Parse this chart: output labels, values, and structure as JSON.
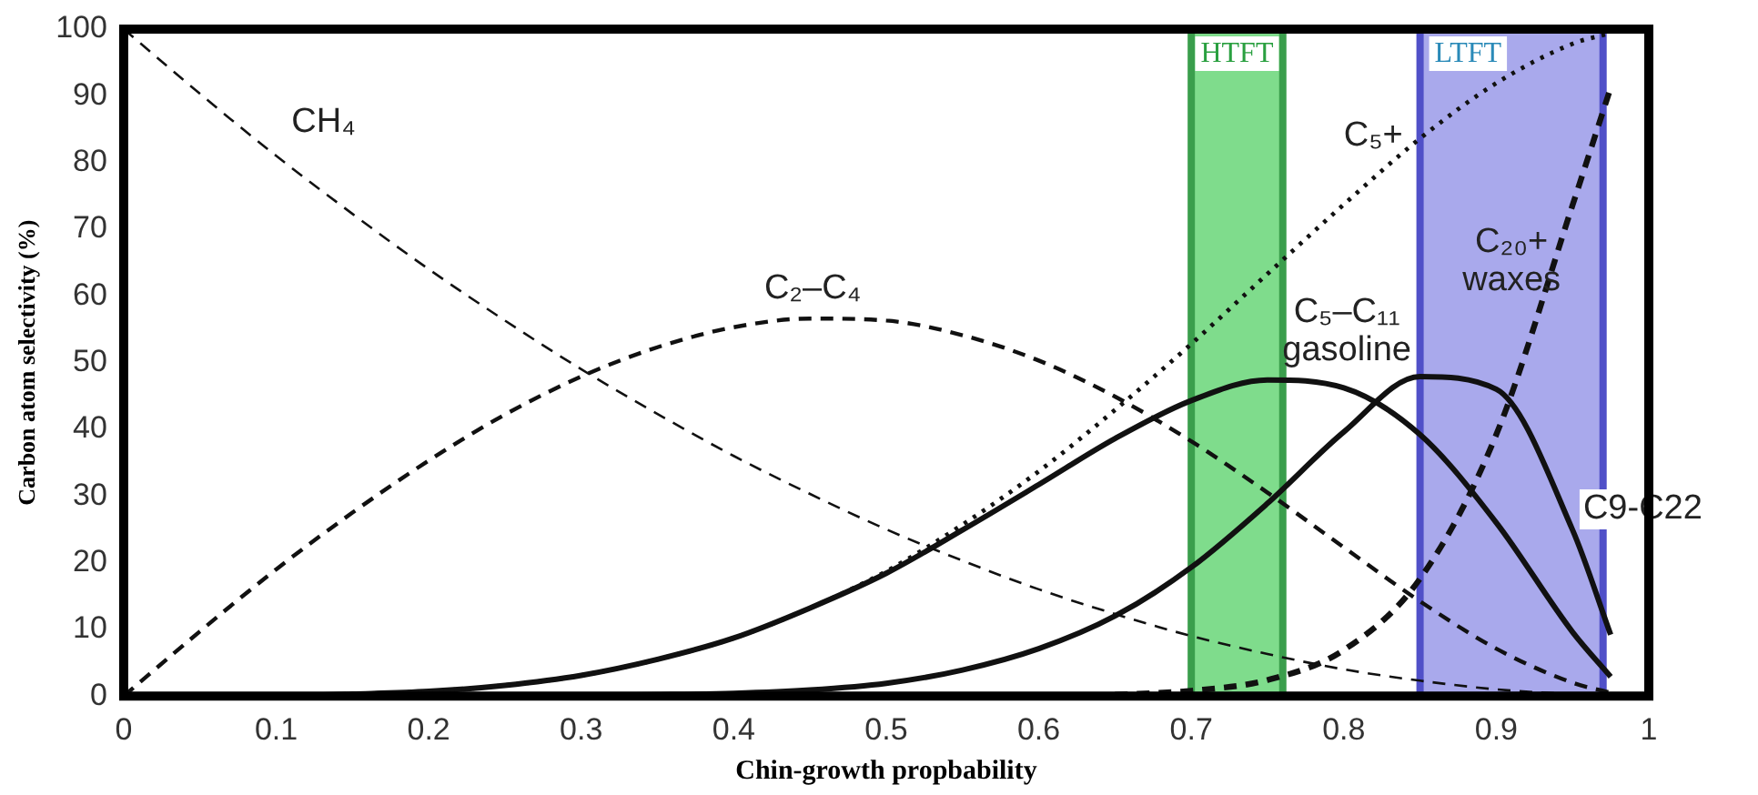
{
  "chart_data": {
    "type": "line",
    "xlabel": "Chin-growth propbability",
    "ylabel": "Carbon atom selectivity (%)",
    "x": [
      0,
      0.05,
      0.1,
      0.15,
      0.2,
      0.25,
      0.3,
      0.35,
      0.4,
      0.45,
      0.5,
      0.55,
      0.6,
      0.65,
      0.7,
      0.75,
      0.8,
      0.85,
      0.9,
      0.95,
      0.975
    ],
    "series": [
      {
        "name": "CH₄",
        "color": "#111111",
        "line_style": "dashed",
        "values": [
          100,
          90.3,
          81,
          72.3,
          64,
          56.3,
          49,
          42.3,
          36,
          30.3,
          25,
          20.3,
          16,
          12.3,
          9,
          6.3,
          4,
          2.3,
          1,
          0.3,
          0.1
        ]
      },
      {
        "name": "C₂–C₄",
        "color": "#111111",
        "line_style": "dashed",
        "values": [
          0,
          9.7,
          19,
          27.5,
          35.3,
          42.2,
          47.9,
          52.3,
          55.3,
          56.6,
          56.3,
          54.1,
          50.3,
          44.9,
          38.2,
          30.5,
          22.3,
          14.2,
          7.1,
          2,
          0.5
        ]
      },
      {
        "name": "C₅+",
        "color": "#111111",
        "line_style": "dotted",
        "values": [
          0,
          0,
          0,
          0.3,
          0.7,
          1.6,
          3.1,
          5.5,
          8.7,
          13.2,
          18.7,
          25.7,
          33.7,
          42.9,
          52.8,
          63.3,
          73.7,
          83.6,
          91.9,
          97.8,
          99.4
        ]
      },
      {
        "name": "C₅–C₁₁\ngasoline",
        "color": "#111111",
        "line_style": "solid",
        "values": [
          0,
          0,
          0,
          0.3,
          0.7,
          1.6,
          3.1,
          5.5,
          8.7,
          13.2,
          18.4,
          24.9,
          31.7,
          38.6,
          44.3,
          47.4,
          46.2,
          39.2,
          26,
          9.6,
          2.9
        ]
      },
      {
        "name": "C₂₀+\nwaxes",
        "color": "#111111",
        "line_style": "dashed",
        "values": [
          null,
          null,
          null,
          null,
          null,
          null,
          null,
          null,
          null,
          null,
          null,
          null,
          null,
          0.2,
          0.8,
          2.4,
          6.9,
          17.6,
          39.2,
          73.6,
          91.2
        ]
      },
      {
        "name": "C9-C22",
        "color": "#111111",
        "line_style": "solid",
        "values": [
          0,
          0,
          0,
          0,
          0,
          0,
          0.1,
          0.2,
          0.4,
          0.9,
          1.9,
          3.9,
          7.1,
          12,
          19.3,
          28.9,
          39.6,
          47.9,
          46,
          24.9,
          9.2
        ]
      }
    ],
    "xlim": [
      0,
      1
    ],
    "xticks": [
      0,
      0.1,
      0.2,
      0.3,
      0.4,
      0.5,
      0.6,
      0.7,
      0.8,
      0.9,
      1
    ],
    "ylim": [
      0,
      100
    ],
    "yticks": [
      0,
      10,
      20,
      30,
      40,
      50,
      60,
      70,
      80,
      90,
      100
    ],
    "bands": [
      {
        "axis": "x",
        "from": 0.7,
        "to": 0.76,
        "label": "HTFT",
        "color": "#7fdc8c"
      },
      {
        "axis": "x",
        "from": 0.85,
        "to": 0.97,
        "label": "LTFT",
        "color": "#a9a9ec"
      }
    ],
    "grid": false,
    "legend": false,
    "marker": "none"
  }
}
